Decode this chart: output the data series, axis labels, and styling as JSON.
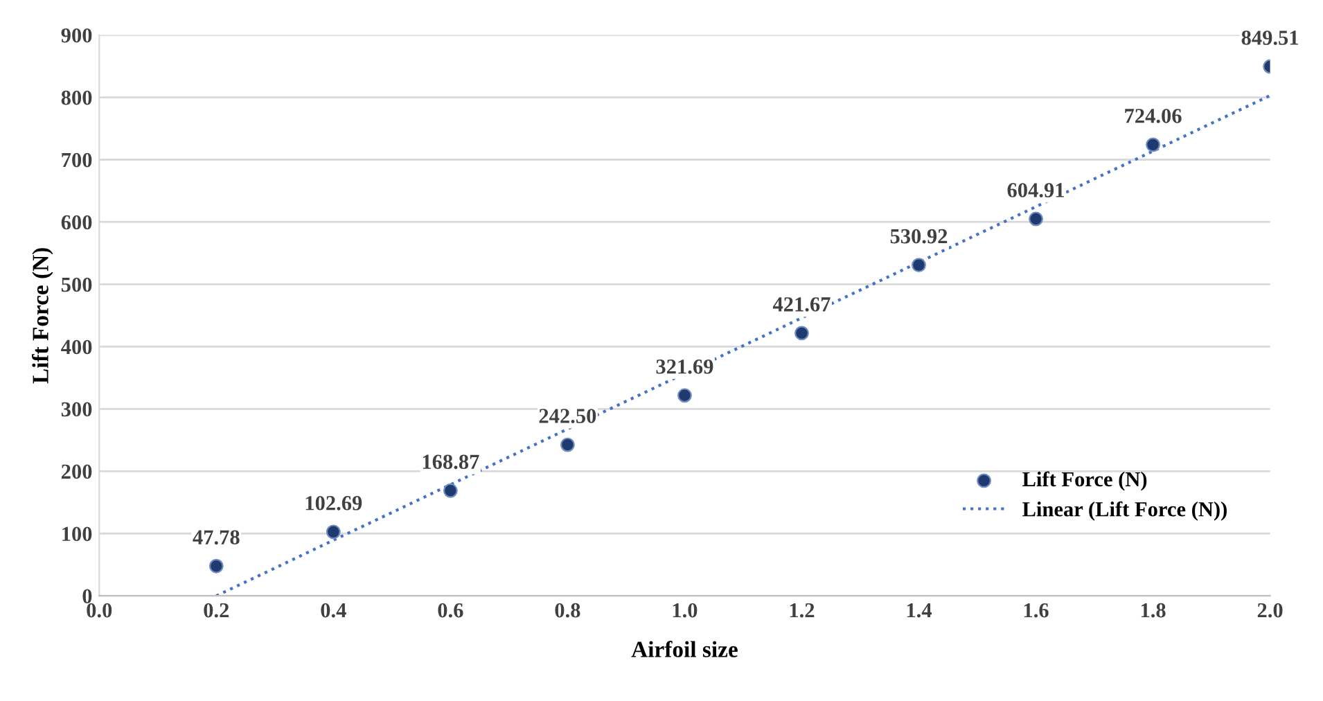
{
  "chart_data": {
    "type": "scatter",
    "xlabel": "Airfoil size",
    "ylabel": "Lift Force (N)",
    "x": [
      0.2,
      0.4,
      0.6,
      0.8,
      1.0,
      1.2,
      1.4,
      1.6,
      1.8,
      2.0
    ],
    "series": [
      {
        "name": "Lift Force (N)",
        "color": "#1f3a6e",
        "marker": "circle",
        "values": [
          47.78,
          102.69,
          168.87,
          242.5,
          321.69,
          421.67,
          530.92,
          604.91,
          724.06,
          849.51
        ],
        "value_labels": [
          "47.78",
          "102.69",
          "168.87",
          "242.50",
          "321.69",
          "421.67",
          "530.92",
          "604.91",
          "724.06",
          "849.51"
        ]
      },
      {
        "name": "Linear (Lift Force (N))",
        "type": "line",
        "color": "#4472c4",
        "line_style": "dotted",
        "x": [
          0.2,
          2.0
        ],
        "values": [
          0,
          803
        ]
      }
    ],
    "xlim": [
      0,
      2.0
    ],
    "ylim": [
      0,
      900
    ],
    "xticks": [
      {
        "value": 0,
        "label": "0.0"
      },
      {
        "value": 0.2,
        "label": "0.2"
      },
      {
        "value": 0.4,
        "label": "0.4"
      },
      {
        "value": 0.6,
        "label": "0.6"
      },
      {
        "value": 0.8,
        "label": "0.8"
      },
      {
        "value": 1.0,
        "label": "1.0"
      },
      {
        "value": 1.2,
        "label": "1.2"
      },
      {
        "value": 1.4,
        "label": "1.4"
      },
      {
        "value": 1.6,
        "label": "1.6"
      },
      {
        "value": 1.8,
        "label": "1.8"
      },
      {
        "value": 2.0,
        "label": "2.0"
      }
    ],
    "yticks": [
      0,
      100,
      200,
      300,
      400,
      500,
      600,
      700,
      800,
      900
    ],
    "grid": "y",
    "legend": "lower right"
  }
}
